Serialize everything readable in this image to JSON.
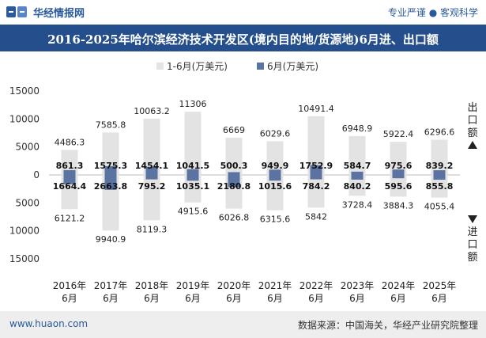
{
  "header": {
    "brand": "华经情报网",
    "tagline": "专业严谨 ● 客观科学",
    "title": "2016-2025年哈尔滨经济技术开发区(境内目的地/货源地)6月进、出口额"
  },
  "footer": {
    "website": "www.huaon.com",
    "source": "数据来源：中国海关，华经产业研究院整理"
  },
  "colors": {
    "cumulative": "#e3e3e3",
    "monthly": "#5b73a0",
    "header_bg": "#244f8c",
    "brand_blue": "#2a5a9b"
  },
  "chart_data": {
    "type": "bar",
    "categories": [
      "2016年\n6月",
      "2017年\n6月",
      "2018年\n6月",
      "2019年\n6月",
      "2020年\n6月",
      "2021年\n6月",
      "2022年\n6月",
      "2023年\n6月",
      "2024年\n6月",
      "2025年\n6月"
    ],
    "legend": [
      "1-6月(万美元)",
      "6月(万美元)"
    ],
    "legend_position": "top-center",
    "ylim": [
      -15000,
      15000
    ],
    "yticks": [
      15000,
      10000,
      5000,
      0,
      5000,
      10000,
      15000
    ],
    "side_labels": {
      "top": "出口额",
      "bottom": "进口额"
    },
    "series": [
      {
        "name": "1-6月(万美元)",
        "direction": "export",
        "values": [
          4486.3,
          7585.8,
          10063.2,
          11306,
          6669,
          6029.6,
          10491.4,
          6948.9,
          5922.4,
          6296.6
        ]
      },
      {
        "name": "1-6月(万美元)",
        "direction": "import",
        "values": [
          6121.2,
          9940.9,
          8119.3,
          4915.6,
          6026.8,
          6315.6,
          5842,
          3728.4,
          3884.3,
          4055.4
        ]
      },
      {
        "name": "6月(万美元)",
        "direction": "export",
        "values": [
          861.3,
          1575.3,
          1454.1,
          1041.5,
          500.3,
          949.9,
          1752.9,
          584.7,
          975.6,
          839.2
        ]
      },
      {
        "name": "6月(万美元)",
        "direction": "import",
        "values": [
          1664.4,
          2663.8,
          795.2,
          1035.1,
          2180.8,
          1015.6,
          784.2,
          840.2,
          595.6,
          855.8
        ]
      }
    ]
  }
}
